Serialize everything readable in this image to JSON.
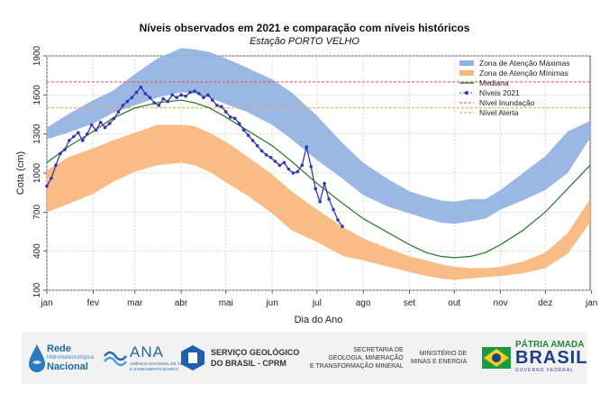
{
  "chart_title": "Níveis observados em 2021 e comparação com níveis históricos",
  "chart_subtitle": "Estação PORTO VELHO",
  "chart_data": {
    "type": "line",
    "title": "Níveis observados em 2021 e comparação com níveis históricos",
    "subtitle": "Estação PORTO VELHO",
    "xlabel": "Dia do Ano",
    "ylabel": "Cota (cm)",
    "xlim": [
      1,
      365
    ],
    "ylim": [
      100,
      1900
    ],
    "x_ticks": [
      "jan",
      "fev",
      "mar",
      "abr",
      "mai",
      "jun",
      "jul",
      "ago",
      "set",
      "out",
      "nov",
      "dez",
      "jan"
    ],
    "x_tick_days": [
      1,
      32,
      60,
      91,
      121,
      152,
      182,
      213,
      244,
      274,
      305,
      335,
      366
    ],
    "y_ticks": [
      100,
      400,
      700,
      1000,
      1300,
      1600,
      1900
    ],
    "grid": true,
    "legend_position": "top-right",
    "legend": [
      {
        "label": "Zona de Atenção Máximas",
        "kind": "band",
        "color": "#8fb0e0"
      },
      {
        "label": "Zona de Atenção Mínimas",
        "kind": "band",
        "color": "#f8b57a"
      },
      {
        "label": "Mediana",
        "kind": "line",
        "color": "#2e7d32"
      },
      {
        "label": "Níveis 2021",
        "kind": "points",
        "color": "#3535b8"
      },
      {
        "label": "Nível Inundação",
        "kind": "hline",
        "color": "#d9534f"
      },
      {
        "label": "Nível Alerta",
        "kind": "hline",
        "color": "#e6a23c"
      }
    ],
    "thresholds": {
      "Nível Inundação": 1700,
      "Nível Alerta": 1500
    },
    "bands": {
      "Zona de Atenção Máximas": {
        "x": [
          1,
          15,
          32,
          45,
          60,
          75,
          91,
          100,
          110,
          121,
          135,
          152,
          165,
          182,
          200,
          213,
          230,
          244,
          255,
          265,
          274,
          285,
          295,
          305,
          320,
          335,
          350,
          365
        ],
        "upper": [
          1350,
          1450,
          1560,
          1630,
          1760,
          1880,
          1960,
          1950,
          1930,
          1880,
          1810,
          1720,
          1620,
          1440,
          1220,
          1080,
          950,
          860,
          820,
          790,
          780,
          800,
          800,
          870,
          1000,
          1130,
          1320,
          1400
        ],
        "lower": [
          1260,
          1310,
          1380,
          1460,
          1520,
          1580,
          1620,
          1610,
          1580,
          1530,
          1470,
          1370,
          1260,
          1100,
          950,
          830,
          740,
          690,
          650,
          620,
          610,
          630,
          650,
          720,
          790,
          870,
          1000,
          1270
        ]
      },
      "Zona de Atenção Mínimas": {
        "x": [
          1,
          15,
          32,
          45,
          60,
          75,
          91,
          100,
          110,
          121,
          135,
          152,
          165,
          182,
          200,
          213,
          230,
          244,
          255,
          265,
          274,
          285,
          295,
          305,
          320,
          335,
          350,
          365
        ],
        "upper": [
          1020,
          1120,
          1190,
          1250,
          1310,
          1370,
          1370,
          1360,
          1310,
          1240,
          1130,
          990,
          860,
          720,
          580,
          500,
          420,
          360,
          330,
          300,
          280,
          270,
          270,
          280,
          320,
          390,
          540,
          800
        ],
        "lower": [
          700,
          760,
          840,
          930,
          1010,
          1060,
          1080,
          1060,
          1010,
          930,
          830,
          690,
          560,
          470,
          360,
          330,
          280,
          240,
          210,
          190,
          180,
          190,
          200,
          210,
          230,
          270,
          380,
          620
        ]
      }
    },
    "series": [
      {
        "name": "Mediana",
        "x": [
          1,
          15,
          32,
          45,
          60,
          75,
          91,
          100,
          110,
          121,
          135,
          152,
          165,
          182,
          200,
          213,
          230,
          244,
          255,
          265,
          274,
          285,
          295,
          305,
          320,
          335,
          350,
          365
        ],
        "values": [
          1080,
          1200,
          1320,
          1420,
          1500,
          1540,
          1560,
          1540,
          1500,
          1430,
          1330,
          1210,
          1090,
          920,
          760,
          650,
          540,
          450,
          390,
          360,
          350,
          360,
          390,
          450,
          560,
          700,
          880,
          1060
        ]
      },
      {
        "name": "Níveis 2021",
        "x": [
          1,
          4,
          7,
          10,
          13,
          16,
          19,
          22,
          25,
          28,
          31,
          34,
          37,
          40,
          43,
          46,
          49,
          52,
          55,
          58,
          61,
          64,
          67,
          70,
          73,
          76,
          79,
          82,
          85,
          88,
          91,
          94,
          97,
          100,
          103,
          106,
          109,
          112,
          115,
          118,
          121,
          124,
          127,
          130,
          133,
          136,
          139,
          142,
          145,
          148,
          151,
          154,
          157,
          160,
          163,
          166,
          169,
          172,
          175,
          178,
          181,
          184,
          187,
          190,
          193,
          196,
          199
        ],
        "values": [
          900,
          960,
          1060,
          1150,
          1180,
          1250,
          1280,
          1310,
          1250,
          1300,
          1370,
          1330,
          1390,
          1350,
          1380,
          1420,
          1470,
          1520,
          1550,
          1580,
          1620,
          1660,
          1610,
          1580,
          1540,
          1520,
          1570,
          1550,
          1600,
          1580,
          1600,
          1590,
          1620,
          1630,
          1610,
          1580,
          1600,
          1560,
          1520,
          1510,
          1470,
          1430,
          1420,
          1380,
          1330,
          1290,
          1250,
          1210,
          1170,
          1140,
          1120,
          1090,
          1060,
          1080,
          1030,
          1000,
          1010,
          1060,
          1200,
          1050,
          880,
          780,
          920,
          800,
          720,
          640,
          590
        ]
      }
    ]
  },
  "logos": {
    "rede_title": "Rede",
    "rede_sub": "Hidrometeorológica",
    "rede_name": "Nacional",
    "ana_name": "ANA",
    "ana_sub1": "AGÊNCIA NACIONAL DE ÁGUAS",
    "ana_sub2": "E SANEAMENTO BÁSICO",
    "sgb_line1": "SERVIÇO GEOLÓGICO",
    "sgb_line2": "DO BRASIL - CPRM",
    "sec_line1": "SECRETARIA DE",
    "sec_line2": "GEOLOGIA, MINERAÇÃO",
    "sec_line3": "E TRANSFORMAÇÃO MINERAL",
    "min_line1": "MINISTÉRIO DE",
    "min_line2": "MINAS E ENERGIA",
    "patria_top": "PÁTRIA AMADA",
    "patria_main": "BRASIL",
    "patria_sub": "GOVERNO FEDERAL"
  }
}
